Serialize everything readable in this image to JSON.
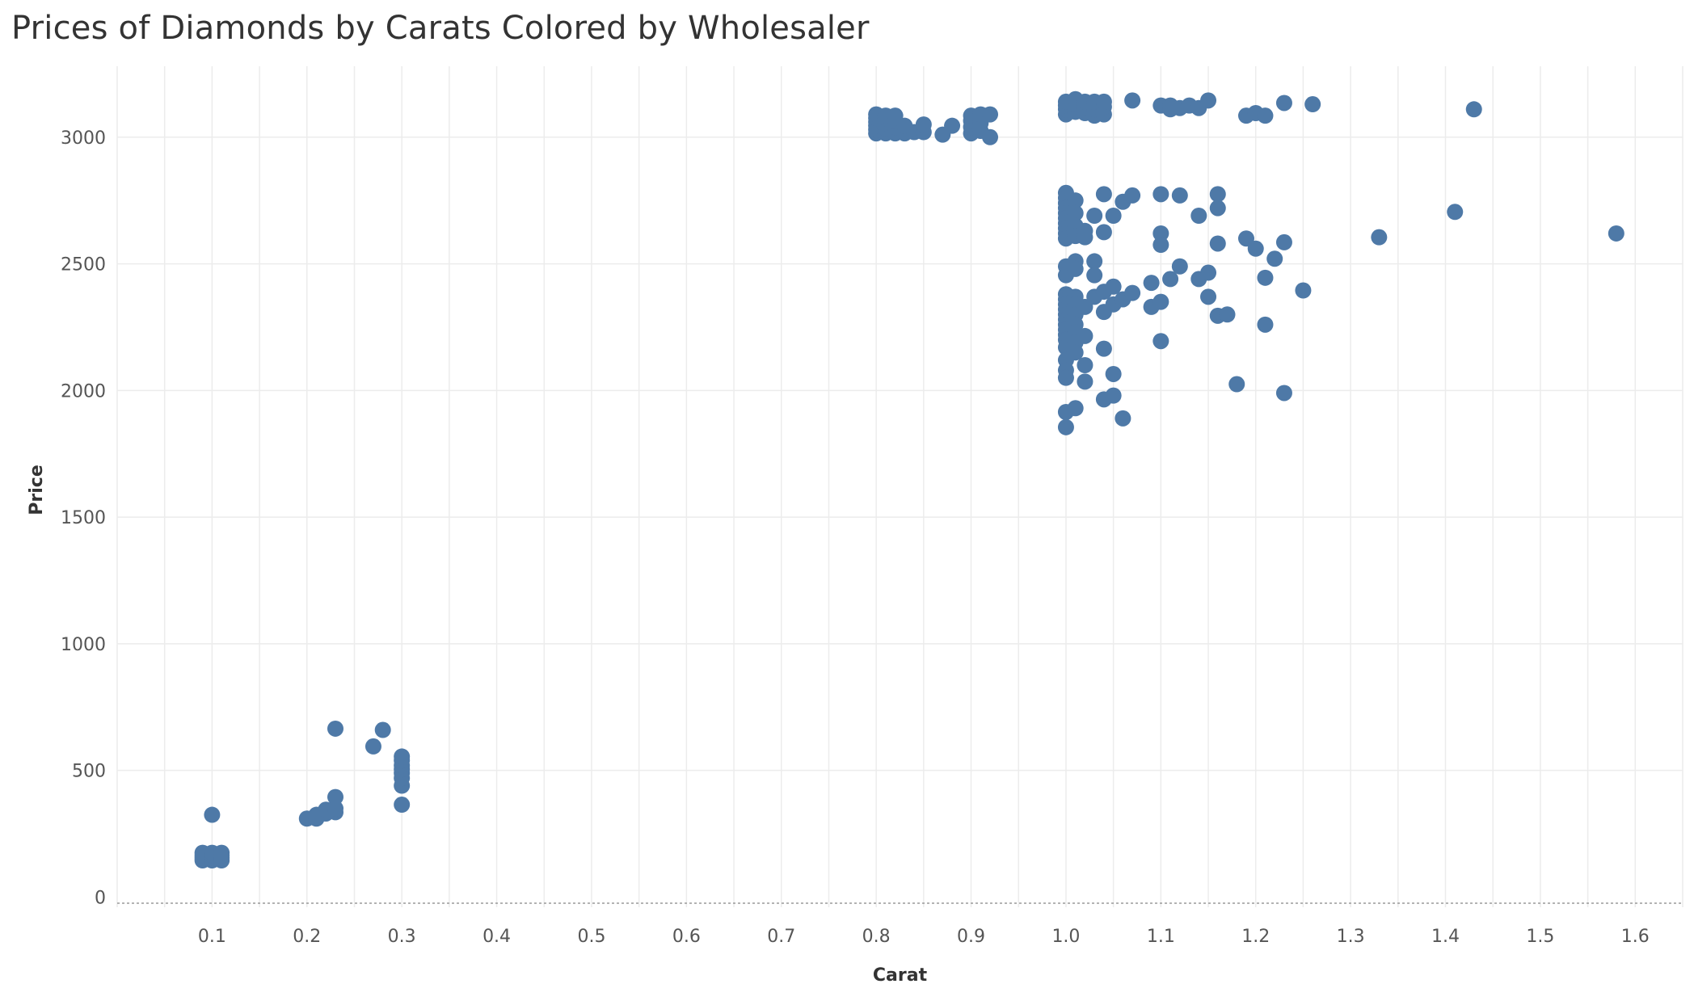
{
  "chart_data": {
    "type": "scatter",
    "title": "Prices of Diamonds by Carats Colored by Wholesaler",
    "xlabel": "Carat",
    "ylabel": "Price",
    "xlim": [
      0,
      1.65
    ],
    "ylim": [
      -40,
      3280
    ],
    "x_ticks": [
      "0.1",
      "0.2",
      "0.3",
      "0.4",
      "0.5",
      "0.6",
      "0.7",
      "0.8",
      "0.9",
      "1.0",
      "1.1",
      "1.2",
      "1.3",
      "1.4",
      "1.5",
      "1.6"
    ],
    "y_ticks": [
      "0",
      "500",
      "1000",
      "1500",
      "2000",
      "2500",
      "3000"
    ],
    "grid": true,
    "marker_color": "#4e79a7",
    "points": [
      [
        0.09,
        145
      ],
      [
        0.09,
        155
      ],
      [
        0.09,
        165
      ],
      [
        0.09,
        175
      ],
      [
        0.1,
        145
      ],
      [
        0.1,
        155
      ],
      [
        0.1,
        165
      ],
      [
        0.1,
        175
      ],
      [
        0.1,
        325
      ],
      [
        0.11,
        145
      ],
      [
        0.11,
        155
      ],
      [
        0.11,
        165
      ],
      [
        0.11,
        175
      ],
      [
        0.2,
        310
      ],
      [
        0.21,
        310
      ],
      [
        0.21,
        325
      ],
      [
        0.22,
        330
      ],
      [
        0.22,
        345
      ],
      [
        0.23,
        335
      ],
      [
        0.23,
        350
      ],
      [
        0.23,
        395
      ],
      [
        0.23,
        665
      ],
      [
        0.27,
        595
      ],
      [
        0.28,
        660
      ],
      [
        0.3,
        365
      ],
      [
        0.3,
        440
      ],
      [
        0.3,
        470
      ],
      [
        0.3,
        490
      ],
      [
        0.3,
        505
      ],
      [
        0.3,
        520
      ],
      [
        0.3,
        540
      ],
      [
        0.3,
        555
      ],
      [
        0.8,
        3015
      ],
      [
        0.8,
        3030
      ],
      [
        0.8,
        3045
      ],
      [
        0.8,
        3060
      ],
      [
        0.8,
        3075
      ],
      [
        0.8,
        3090
      ],
      [
        0.81,
        3015
      ],
      [
        0.81,
        3035
      ],
      [
        0.81,
        3055
      ],
      [
        0.81,
        3075
      ],
      [
        0.81,
        3085
      ],
      [
        0.82,
        3015
      ],
      [
        0.82,
        3040
      ],
      [
        0.82,
        3065
      ],
      [
        0.82,
        3085
      ],
      [
        0.83,
        3015
      ],
      [
        0.83,
        3045
      ],
      [
        0.84,
        3020
      ],
      [
        0.85,
        3020
      ],
      [
        0.85,
        3050
      ],
      [
        0.87,
        3010
      ],
      [
        0.88,
        3045
      ],
      [
        0.9,
        3015
      ],
      [
        0.9,
        3040
      ],
      [
        0.9,
        3065
      ],
      [
        0.9,
        3085
      ],
      [
        0.91,
        3025
      ],
      [
        0.91,
        3055
      ],
      [
        0.91,
        3090
      ],
      [
        0.92,
        3000
      ],
      [
        0.92,
        3090
      ],
      [
        1.0,
        3090
      ],
      [
        1.0,
        3110
      ],
      [
        1.0,
        3125
      ],
      [
        1.0,
        3140
      ],
      [
        1.01,
        3100
      ],
      [
        1.01,
        3130
      ],
      [
        1.01,
        3150
      ],
      [
        1.02,
        3095
      ],
      [
        1.02,
        3120
      ],
      [
        1.02,
        3140
      ],
      [
        1.03,
        3085
      ],
      [
        1.03,
        3110
      ],
      [
        1.03,
        3140
      ],
      [
        1.04,
        3090
      ],
      [
        1.04,
        3120
      ],
      [
        1.04,
        3140
      ],
      [
        1.07,
        3145
      ],
      [
        1.1,
        3125
      ],
      [
        1.11,
        3110
      ],
      [
        1.11,
        3125
      ],
      [
        1.12,
        3115
      ],
      [
        1.13,
        3125
      ],
      [
        1.14,
        3115
      ],
      [
        1.15,
        3145
      ],
      [
        1.19,
        3085
      ],
      [
        1.2,
        3095
      ],
      [
        1.21,
        3085
      ],
      [
        1.23,
        3135
      ],
      [
        1.26,
        3130
      ],
      [
        1.43,
        3110
      ],
      [
        1.0,
        2780
      ],
      [
        1.0,
        2760
      ],
      [
        1.0,
        2740
      ],
      [
        1.0,
        2720
      ],
      [
        1.0,
        2700
      ],
      [
        1.0,
        2680
      ],
      [
        1.0,
        2660
      ],
      [
        1.0,
        2640
      ],
      [
        1.0,
        2620
      ],
      [
        1.0,
        2600
      ],
      [
        1.01,
        2750
      ],
      [
        1.01,
        2700
      ],
      [
        1.01,
        2650
      ],
      [
        1.01,
        2610
      ],
      [
        1.02,
        2630
      ],
      [
        1.02,
        2605
      ],
      [
        1.03,
        2690
      ],
      [
        1.04,
        2775
      ],
      [
        1.04,
        2625
      ],
      [
        1.05,
        2690
      ],
      [
        1.06,
        2745
      ],
      [
        1.07,
        2770
      ],
      [
        1.1,
        2775
      ],
      [
        1.1,
        2620
      ],
      [
        1.1,
        2575
      ],
      [
        1.12,
        2770
      ],
      [
        1.14,
        2690
      ],
      [
        1.16,
        2775
      ],
      [
        1.16,
        2720
      ],
      [
        1.16,
        2580
      ],
      [
        1.19,
        2600
      ],
      [
        1.2,
        2560
      ],
      [
        1.22,
        2520
      ],
      [
        1.23,
        2585
      ],
      [
        1.33,
        2605
      ],
      [
        1.41,
        2705
      ],
      [
        1.58,
        2620
      ],
      [
        1.0,
        2490
      ],
      [
        1.0,
        2455
      ],
      [
        1.01,
        2510
      ],
      [
        1.01,
        2480
      ],
      [
        1.03,
        2510
      ],
      [
        1.03,
        2455
      ],
      [
        1.0,
        2380
      ],
      [
        1.0,
        2360
      ],
      [
        1.0,
        2340
      ],
      [
        1.0,
        2320
      ],
      [
        1.0,
        2300
      ],
      [
        1.0,
        2280
      ],
      [
        1.0,
        2260
      ],
      [
        1.0,
        2240
      ],
      [
        1.0,
        2220
      ],
      [
        1.0,
        2200
      ],
      [
        1.0,
        2170
      ],
      [
        1.0,
        2120
      ],
      [
        1.0,
        2080
      ],
      [
        1.0,
        2050
      ],
      [
        1.01,
        2370
      ],
      [
        1.01,
        2340
      ],
      [
        1.01,
        2300
      ],
      [
        1.01,
        2260
      ],
      [
        1.01,
        2230
      ],
      [
        1.01,
        2190
      ],
      [
        1.01,
        2150
      ],
      [
        1.02,
        2330
      ],
      [
        1.02,
        2215
      ],
      [
        1.02,
        2100
      ],
      [
        1.02,
        2035
      ],
      [
        1.03,
        2370
      ],
      [
        1.04,
        2390
      ],
      [
        1.04,
        2310
      ],
      [
        1.04,
        2165
      ],
      [
        1.05,
        2410
      ],
      [
        1.05,
        2340
      ],
      [
        1.05,
        2065
      ],
      [
        1.06,
        2360
      ],
      [
        1.07,
        2385
      ],
      [
        1.09,
        2425
      ],
      [
        1.09,
        2330
      ],
      [
        1.1,
        2350
      ],
      [
        1.1,
        2195
      ],
      [
        1.11,
        2440
      ],
      [
        1.12,
        2490
      ],
      [
        1.14,
        2440
      ],
      [
        1.15,
        2465
      ],
      [
        1.15,
        2370
      ],
      [
        1.16,
        2295
      ],
      [
        1.17,
        2300
      ],
      [
        1.21,
        2445
      ],
      [
        1.21,
        2260
      ],
      [
        1.25,
        2395
      ],
      [
        1.0,
        1915
      ],
      [
        1.0,
        1855
      ],
      [
        1.01,
        1930
      ],
      [
        1.04,
        1965
      ],
      [
        1.05,
        1980
      ],
      [
        1.06,
        1890
      ],
      [
        1.18,
        2025
      ],
      [
        1.23,
        1990
      ]
    ]
  }
}
